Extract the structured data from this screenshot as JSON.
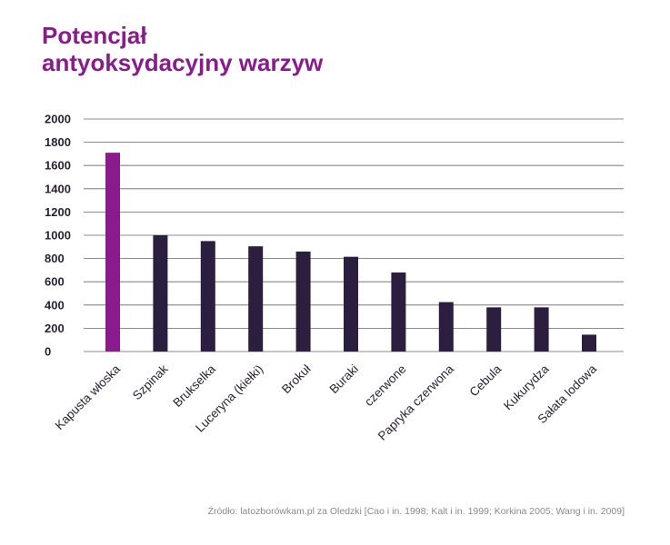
{
  "title_line1": "Potencjał",
  "title_line2": "antyoksydacyjny warzyw",
  "source": "Źródło: latozborówkam.pl za Oledzki [Cao i in. 1998; Kalt i in. 1999; Korkina 2005; Wang i in. 2009]",
  "colors": {
    "highlight": "#8a1b8c",
    "bar": "#2c1e3f",
    "grid": "#666666"
  },
  "chart_data": {
    "type": "bar",
    "title": "Potencjał antyoksydacyjny warzyw",
    "categories": [
      "Kapusta włoska",
      "Szpinak",
      "Brukselka",
      "Luceryna (kiełki)",
      "Brokuł",
      "Buraki",
      "czerwone",
      "Papryka czerwona",
      "Cebula",
      "Kukurydza",
      "Sałata lodowa"
    ],
    "values": [
      1710,
      1000,
      950,
      905,
      860,
      815,
      680,
      425,
      380,
      380,
      145
    ],
    "highlight_index": 0,
    "ylim": [
      0,
      2000
    ],
    "yticks": [
      0,
      200,
      400,
      600,
      800,
      1000,
      1200,
      1400,
      1600,
      1800,
      2000
    ],
    "grid": true,
    "legend": "none"
  }
}
